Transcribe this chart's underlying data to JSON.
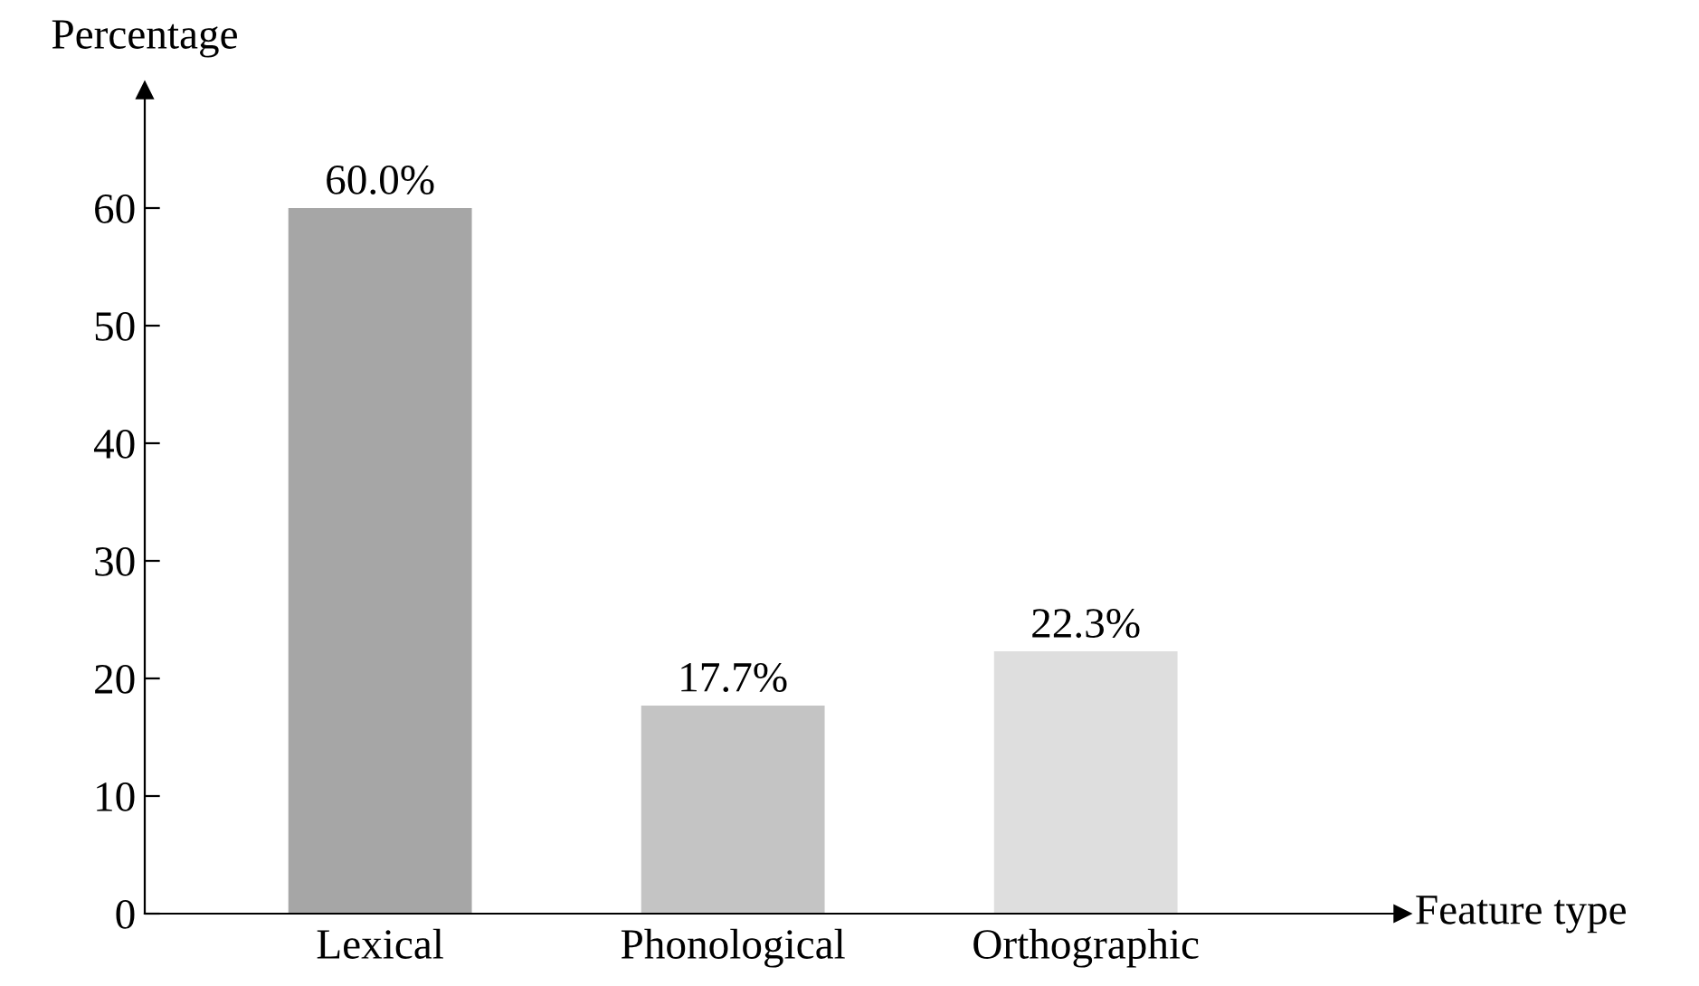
{
  "chart_data": {
    "type": "bar",
    "xlabel": "Feature type",
    "ylabel": "Percentage",
    "categories": [
      "Lexical",
      "Phonological",
      "Orthographic"
    ],
    "values": [
      60.0,
      17.7,
      22.3
    ],
    "value_labels": [
      "60.0%",
      "17.7%",
      "22.3%"
    ],
    "colors": [
      "#a6a6a6",
      "#c4c4c4",
      "#dedede"
    ],
    "ylim": [
      0,
      70
    ],
    "yticks": [
      0,
      10,
      20,
      30,
      40,
      50,
      60
    ],
    "grid": false,
    "legend": false
  }
}
